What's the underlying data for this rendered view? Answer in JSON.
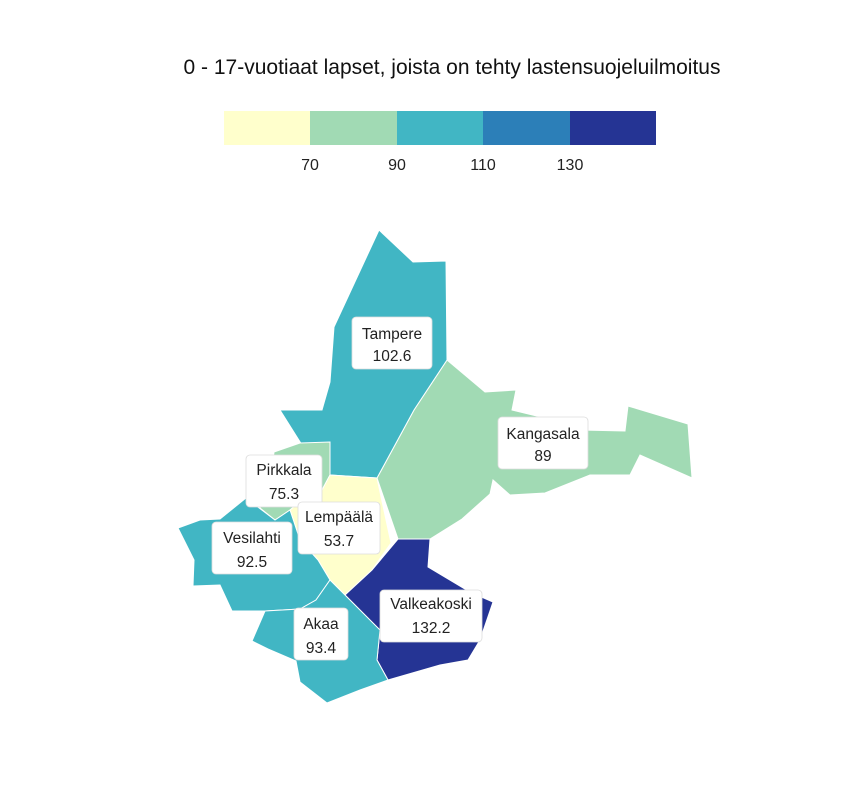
{
  "title": "0 - 17-vuotiaat lapset, joista on tehty lastensuojeluilmoitus",
  "legend": {
    "ticks": [
      "70",
      "90",
      "110",
      "130"
    ],
    "bins": [
      {
        "color": "#ffffcc"
      },
      {
        "color": "#a1dab4"
      },
      {
        "color": "#41b6c4"
      },
      {
        "color": "#2c7fb8"
      },
      {
        "color": "#253494"
      }
    ]
  },
  "regions": [
    {
      "name": "Tampere",
      "value": "102.6",
      "color": "#41b6c4"
    },
    {
      "name": "Kangasala",
      "value": "89",
      "color": "#a1dab4"
    },
    {
      "name": "Pirkkala",
      "value": "75.3",
      "color": "#a1dab4"
    },
    {
      "name": "Lempäälä",
      "value": "53.7",
      "color": "#ffffcc"
    },
    {
      "name": "Vesilahti",
      "value": "92.5",
      "color": "#41b6c4"
    },
    {
      "name": "Akaa",
      "value": "93.4",
      "color": "#41b6c4"
    },
    {
      "name": "Valkeakoski",
      "value": "132.2",
      "color": "#253494"
    }
  ]
}
